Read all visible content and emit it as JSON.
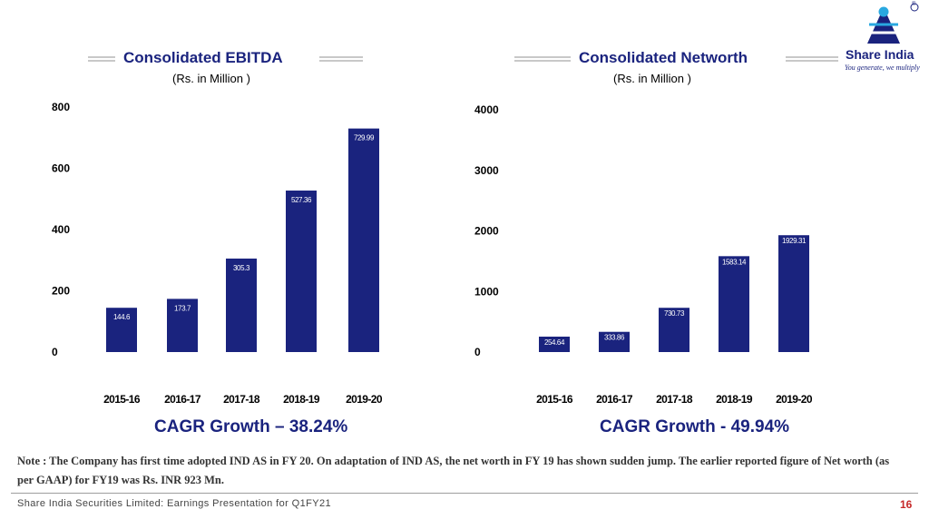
{
  "logo": {
    "name": "Share India",
    "tagline": "You generate, we multiply",
    "registered": "®"
  },
  "colors": {
    "bar": "#1a237e",
    "title": "#1a237e",
    "page_number": "#c62828"
  },
  "chart_data": [
    {
      "type": "bar",
      "title": "Consolidated EBITDA",
      "subtitle": "(Rs. in Million )",
      "categories": [
        "2015-16",
        "2016-17",
        "2017-18",
        "2018-19",
        "2019-20"
      ],
      "values": [
        144.6,
        173.7,
        305.3,
        527.36,
        729.99
      ],
      "value_labels": [
        "144.6",
        "173.7",
        "305.3",
        "527.36",
        "729.99"
      ],
      "ylim": [
        0,
        800
      ],
      "yticks": [
        0,
        200,
        400,
        600,
        800
      ],
      "grid": false
    },
    {
      "type": "bar",
      "title": "Consolidated Networth",
      "subtitle": "(Rs. in Million )",
      "categories": [
        "2015-16",
        "2016-17",
        "2017-18",
        "2018-19",
        "2019-20"
      ],
      "values": [
        254.64,
        333.86,
        730.73,
        1583.14,
        1929.31
      ],
      "value_labels": [
        "254.64",
        "333.86",
        "730.73",
        "1583.14",
        "1929.31"
      ],
      "ylim": [
        0,
        4000
      ],
      "yticks": [
        0,
        1000,
        2000,
        3000,
        4000
      ],
      "grid": false
    }
  ],
  "cagr": {
    "left": "CAGR Growth – 38.24%",
    "right": "CAGR Growth - 49.94%"
  },
  "note": "Note : The Company has first time adopted IND AS in FY 20. On adaptation of IND AS, the net worth in FY 19 has shown sudden jump. The earlier reported figure of Net worth (as per  GAAP) for FY19 was Rs. INR 923 Mn.",
  "footer": {
    "text": "Share India Securities Limited: Earnings Presentation for Q1FY21",
    "page": "16"
  }
}
